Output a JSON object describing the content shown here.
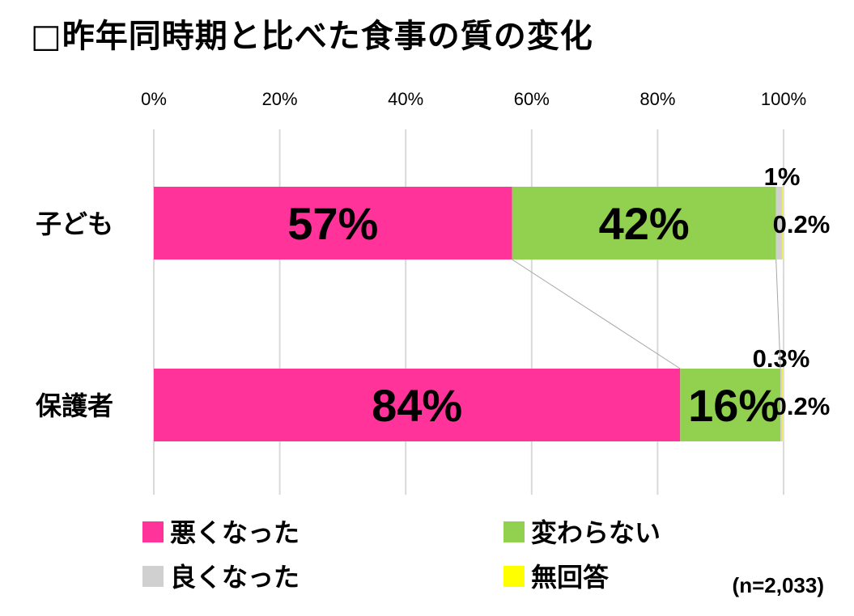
{
  "chart_data": {
    "type": "bar",
    "orientation": "horizontal-stacked-100",
    "title": "□昨年同時期と比べた食事の質の変化",
    "categories": [
      "子ども",
      "保護者"
    ],
    "series": [
      {
        "name": "悪くなった",
        "color": "#FF3399",
        "values": [
          57,
          84
        ],
        "labels": [
          "57%",
          "84%"
        ]
      },
      {
        "name": "変わらない",
        "color": "#92D050",
        "values": [
          42,
          16
        ],
        "labels": [
          "42%",
          "16%"
        ]
      },
      {
        "name": "良くなった",
        "color": "#D0D0D0",
        "values": [
          1,
          0.3
        ],
        "labels": [
          "1%",
          "0.3%"
        ]
      },
      {
        "name": "無回答",
        "color": "#FFFF00",
        "values": [
          0.2,
          0.2
        ],
        "labels": [
          "0.2%",
          "0.2%"
        ]
      }
    ],
    "xlim": [
      0,
      100
    ],
    "xticks": [
      "0%",
      "20%",
      "40%",
      "60%",
      "80%",
      "100%"
    ],
    "grid": true,
    "series_lines": true,
    "legend_position": "bottom",
    "note": "(n=2,033)"
  }
}
